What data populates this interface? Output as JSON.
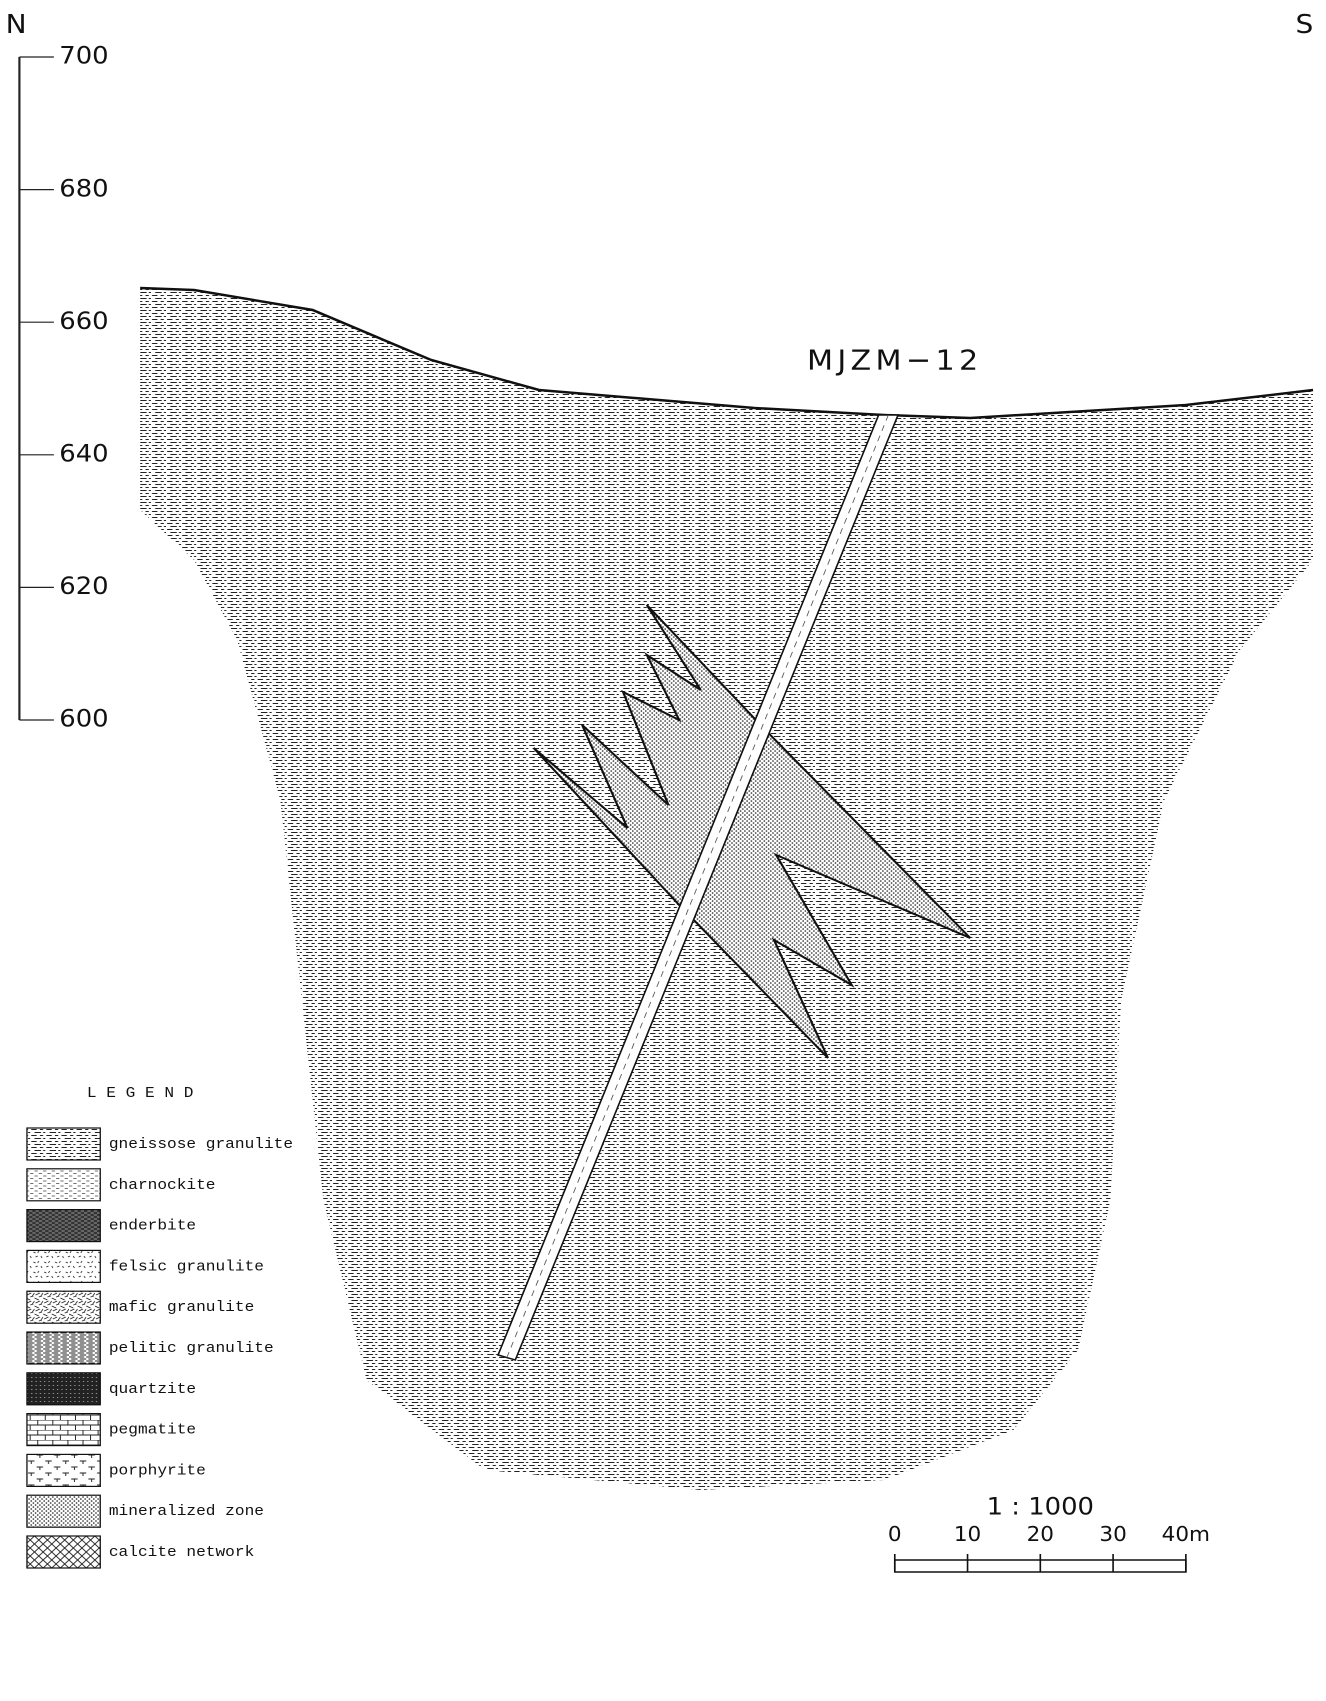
{
  "header": {
    "left_direction": "N",
    "right_direction": "S"
  },
  "elevation_scale": {
    "labels": [
      700,
      680,
      660,
      640,
      620,
      600
    ]
  },
  "drill_hole": {
    "label": "MJZM−12"
  },
  "legend": {
    "title": "L E G E N D",
    "items": [
      "gneissose granulite",
      "charnockite",
      "enderbite",
      "felsic granulite",
      "mafic granulite",
      "pelitic granulite",
      "quartzite",
      "pegmatite",
      "porphyrite",
      "mineralized zone",
      "calcite network"
    ]
  },
  "scale": {
    "ratio": "1 : 1000",
    "bar_labels": [
      "0",
      "10",
      "20",
      "30",
      "40m"
    ]
  }
}
